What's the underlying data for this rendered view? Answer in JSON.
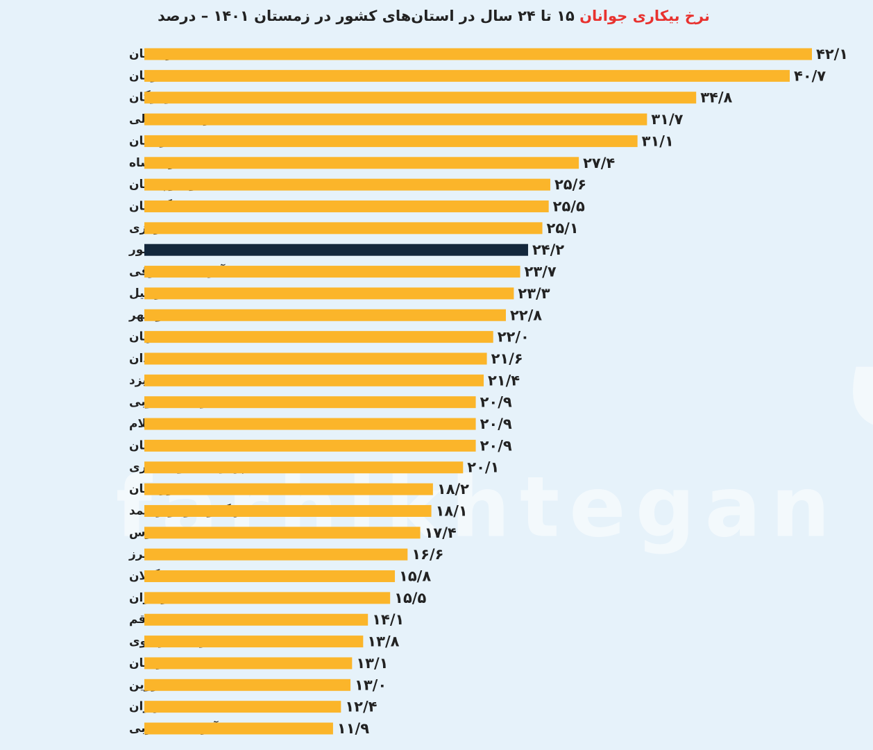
{
  "chart_data": {
    "type": "bar",
    "orientation": "horizontal",
    "title": [
      "نرخ بیکاری جوانان",
      "۱۵ تا ۲۴ سال در استان‌های کشور در زمستان ۱۴۰۱ – درصد"
    ],
    "title_colors": [
      "#e8322f",
      "#222222"
    ],
    "watermark": [
      "فرهیختگان",
      "farhikhtegan"
    ],
    "categories": [
      "کردستان",
      "کرمان",
      "هرمزگان",
      "خراسان شمالی",
      "لرستان",
      "کرمانشاه",
      "سیستان و بلوچستان",
      "گلستان",
      "مرکزی",
      "کل کشور",
      "آذربایجان شرقی",
      "اردبیل",
      "بوشهر",
      "اصفهان",
      "همدان",
      "یزد",
      "خراسان جنوبی",
      "ایلام",
      "سمنان",
      "چهارمحال و بختیاری",
      "خوزستان",
      "کهگیلویه و بویراحمد",
      "فارس",
      "البرز",
      "گیلان",
      "مازندران",
      "قم",
      "خراسان رضوی",
      "زنجان",
      "قزوین",
      "تهران",
      "آذربایجان غربی"
    ],
    "values": [
      42.1,
      40.7,
      34.8,
      31.7,
      31.1,
      27.4,
      25.6,
      25.5,
      25.1,
      24.2,
      23.7,
      23.3,
      22.8,
      22.0,
      21.6,
      21.4,
      20.9,
      20.9,
      20.9,
      20.1,
      18.2,
      18.1,
      17.4,
      16.6,
      15.8,
      15.5,
      14.1,
      13.8,
      13.1,
      13.0,
      12.4,
      11.9
    ],
    "value_labels": [
      "۴۲/۱",
      "۴۰/۷",
      "۳۴/۸",
      "۳۱/۷",
      "۳۱/۱",
      "۲۷/۴",
      "۲۵/۶",
      "۲۵/۵",
      "۲۵/۱",
      "۲۴/۲",
      "۲۳/۷",
      "۲۳/۳",
      "۲۲/۸",
      "۲۲/۰",
      "۲۱/۶",
      "۲۱/۴",
      "۲۰/۹",
      "۲۰/۹",
      "۲۰/۹",
      "۲۰/۱",
      "۱۸/۲",
      "۱۸/۱",
      "۱۷/۴",
      "۱۶/۶",
      "۱۵/۸",
      "۱۵/۵",
      "۱۴/۱",
      "۱۳/۸",
      "۱۳/۱",
      "۱۳/۰",
      "۱۲/۴",
      "۱۱/۹"
    ],
    "colors": [
      "#fbb52a",
      "#fbb52a",
      "#fbb52a",
      "#fbb52a",
      "#fbb52a",
      "#fbb52a",
      "#fbb52a",
      "#fbb52a",
      "#fbb52a",
      "#13273c",
      "#fbb52a",
      "#fbb52a",
      "#fbb52a",
      "#fbb52a",
      "#fbb52a",
      "#fbb52a",
      "#fbb52a",
      "#fbb52a",
      "#fbb52a",
      "#fbb52a",
      "#fbb52a",
      "#fbb52a",
      "#fbb52a",
      "#fbb52a",
      "#fbb52a",
      "#fbb52a",
      "#fbb52a",
      "#fbb52a",
      "#fbb52a",
      "#fbb52a",
      "#fbb52a",
      "#fbb52a"
    ]
  }
}
